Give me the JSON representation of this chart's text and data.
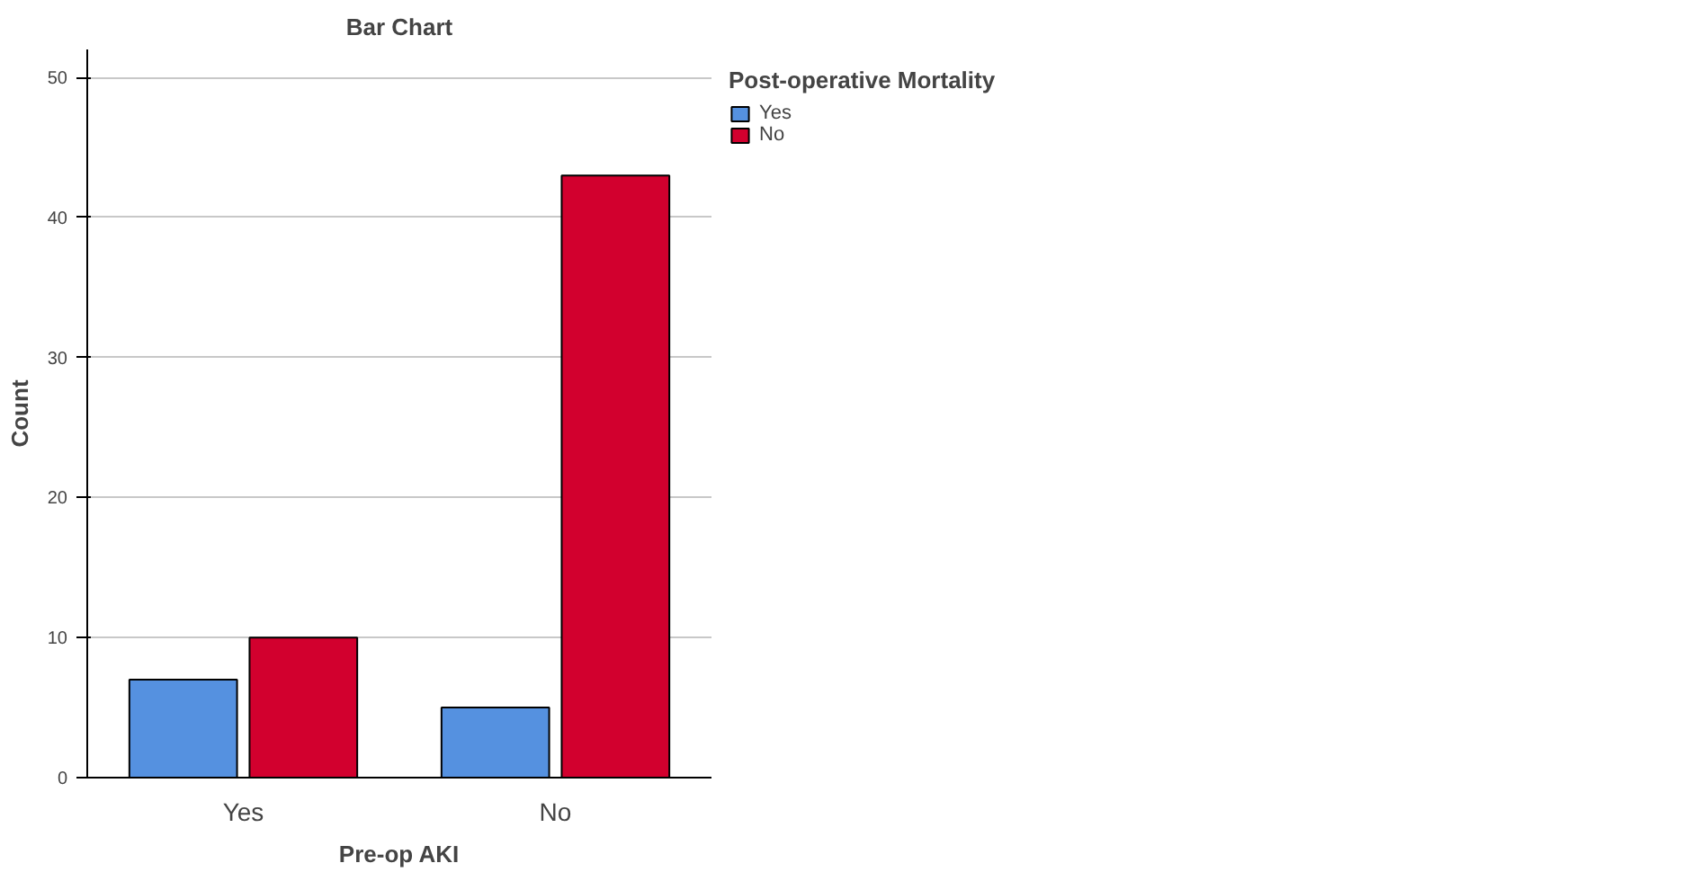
{
  "chart_data": {
    "type": "bar",
    "title": "Bar Chart",
    "xlabel": "Pre-op AKI",
    "ylabel": "Count",
    "legend_title": "Post-operative Mortality",
    "categories": [
      "Yes",
      "No"
    ],
    "series": [
      {
        "name": "Yes",
        "color": "#5591e0",
        "values": [
          7,
          5
        ]
      },
      {
        "name": "No",
        "color": "#d2002e",
        "values": [
          10,
          43
        ]
      }
    ],
    "ylim": [
      0,
      52
    ],
    "yticks": [
      0,
      10,
      20,
      30,
      40,
      50
    ],
    "grid": "y",
    "legend": "top right"
  }
}
